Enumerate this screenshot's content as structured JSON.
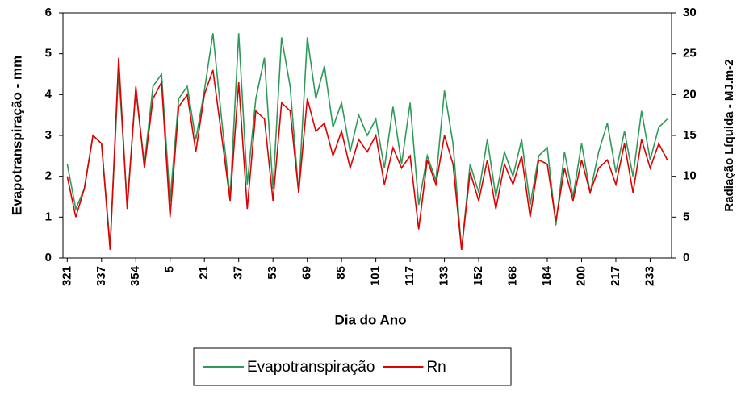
{
  "chart_data": {
    "type": "line",
    "xlabel": "Dia do Ano",
    "ylabel": "Evapotranspiração - mm",
    "y2label": "Radiação Líquida - MJ.m-2",
    "categories": [
      "321",
      null,
      null,
      null,
      "337",
      null,
      null,
      null,
      "354",
      null,
      null,
      null,
      "5",
      null,
      null,
      null,
      "21",
      null,
      null,
      null,
      "37",
      null,
      null,
      null,
      "53",
      null,
      null,
      null,
      "69",
      null,
      null,
      null,
      "85",
      null,
      null,
      null,
      "101",
      null,
      null,
      null,
      "117",
      null,
      null,
      null,
      "133",
      null,
      null,
      null,
      "152",
      null,
      null,
      null,
      "168",
      null,
      null,
      null,
      "184",
      null,
      null,
      null,
      "200",
      null,
      null,
      null,
      "217",
      null,
      null,
      null,
      "233",
      null,
      null
    ],
    "series": [
      {
        "name": "Evapotranspiração",
        "color": "#2e9a5a",
        "values": [
          2.3,
          1.2,
          1.7,
          3.0,
          2.8,
          0.3,
          4.6,
          1.3,
          4.1,
          2.3,
          4.2,
          4.5,
          1.4,
          3.9,
          4.2,
          2.9,
          4.1,
          5.5,
          3.4,
          1.5,
          5.5,
          1.8,
          3.9,
          4.9,
          1.7,
          5.4,
          4.2,
          1.6,
          5.4,
          3.9,
          4.7,
          3.2,
          3.8,
          2.6,
          3.5,
          3.0,
          3.4,
          2.2,
          3.7,
          2.3,
          3.8,
          1.3,
          2.5,
          1.9,
          4.1,
          2.8,
          0.2,
          2.3,
          1.6,
          2.9,
          1.5,
          2.6,
          2.0,
          2.9,
          1.3,
          2.5,
          2.7,
          0.8,
          2.6,
          1.5,
          2.8,
          1.6,
          2.6,
          3.3,
          2.1,
          3.1,
          2.0,
          3.6,
          2.4,
          3.2,
          3.4
        ]
      },
      {
        "name": "Rn",
        "color": "#e00000",
        "axis": "y2",
        "values": [
          10.0,
          5.0,
          8.5,
          15.0,
          14.0,
          1.0,
          24.5,
          6.0,
          21.0,
          11.0,
          19.5,
          21.5,
          5.0,
          18.5,
          20.0,
          13.0,
          20.0,
          23.0,
          15.0,
          7.0,
          21.5,
          6.0,
          18.0,
          17.0,
          7.0,
          19.0,
          18.0,
          8.0,
          19.5,
          15.5,
          16.5,
          12.5,
          15.5,
          11.0,
          14.5,
          13.0,
          15.0,
          9.0,
          13.5,
          11.0,
          12.5,
          3.5,
          12.0,
          9.0,
          15.0,
          11.5,
          1.0,
          10.5,
          7.0,
          12.0,
          6.0,
          11.5,
          9.0,
          12.5,
          5.0,
          12.0,
          11.5,
          4.5,
          11.0,
          7.0,
          12.0,
          8.0,
          11.0,
          12.0,
          9.0,
          14.0,
          8.0,
          14.5,
          11.0,
          14.0,
          12.0
        ]
      }
    ],
    "ylim": [
      0,
      6
    ],
    "yticks": [
      0,
      1,
      2,
      3,
      4,
      5,
      6
    ],
    "y2lim": [
      0,
      30
    ],
    "y2ticks": [
      0,
      5,
      10,
      15,
      20,
      25,
      30
    ],
    "grid": false,
    "legend": "bottom"
  }
}
